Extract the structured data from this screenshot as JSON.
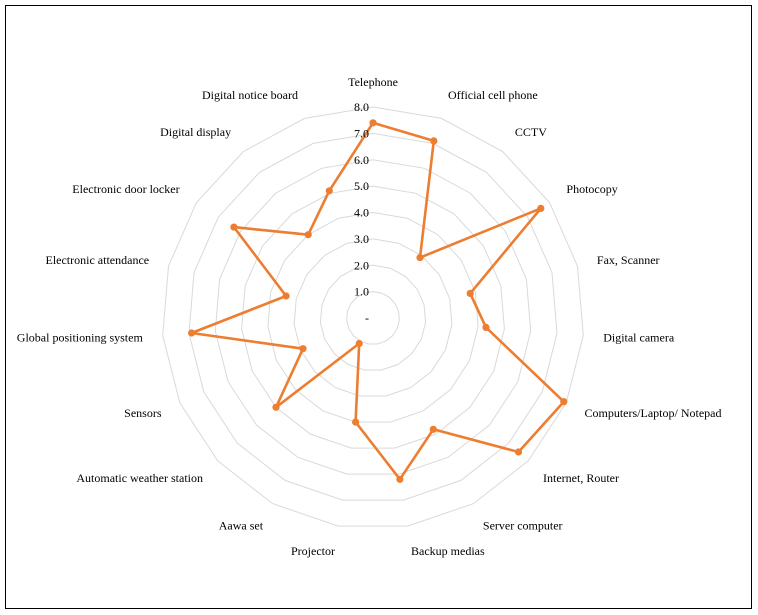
{
  "chart_data": {
    "type": "radar",
    "categories": [
      "Telephone",
      "Official cell phone",
      "CCTV",
      "Photocopy",
      "Fax, Scanner",
      "Digital camera",
      "Computers/Laptop/ Notepad",
      "Internet, Router",
      "Server computer",
      "Backup medias",
      "Projector",
      "Aawa set",
      "Automatic weather station",
      "Sensors",
      "Global positioning system",
      "Electronic attendance",
      "Electronic door locker",
      "Digital display",
      "Digital notice board"
    ],
    "series": [
      {
        "values": [
          7.4,
          7.1,
          2.9,
          7.6,
          3.8,
          4.3,
          7.9,
          7.5,
          4.8,
          6.2,
          4.0,
          1.1,
          5.0,
          2.9,
          6.9,
          3.4,
          6.3,
          4.0,
          5.1
        ],
        "color": "#ED7D31"
      }
    ],
    "rticks": [
      "-",
      "1.0",
      "2.0",
      "3.0",
      "4.0",
      "5.0",
      "6.0",
      "7.0",
      "8.0"
    ],
    "rlim": [
      0,
      8
    ],
    "grid": true,
    "grid_color": "#D9D9D9"
  }
}
